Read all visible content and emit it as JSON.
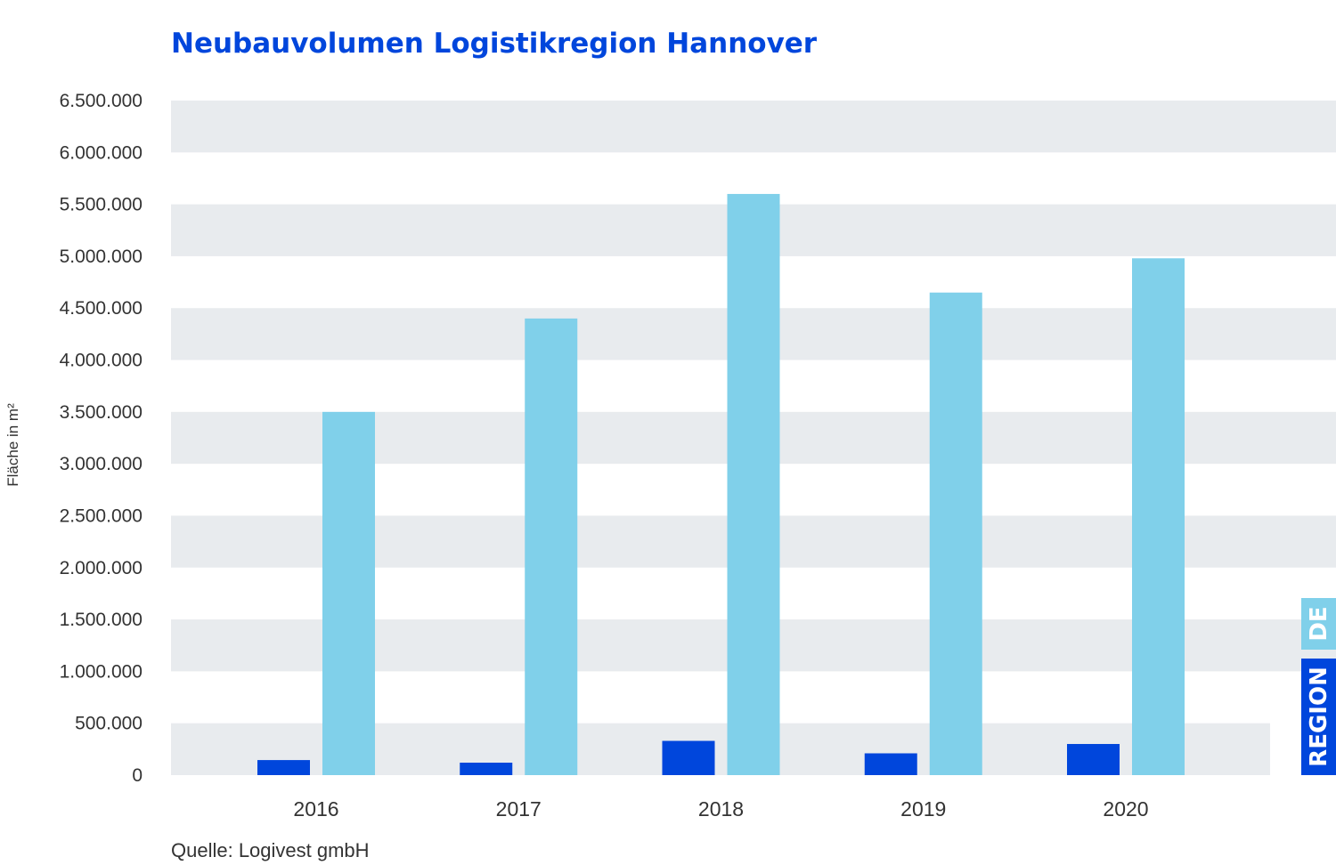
{
  "colors": {
    "region": "#0046dc",
    "de": "#80d0ea",
    "band": "#e8ebee",
    "text": "#333333"
  },
  "chart_data": {
    "type": "bar",
    "title": "Neubauvolumen Logistikregion Hannover",
    "ylabel": "Fläche in m²",
    "xlabel": "",
    "categories": [
      "2016",
      "2017",
      "2018",
      "2019",
      "2020"
    ],
    "series": [
      {
        "name": "REGION",
        "values": [
          145000,
          120000,
          330000,
          210000,
          300000
        ]
      },
      {
        "name": "DE",
        "values": [
          3500000,
          4400000,
          5600000,
          4650000,
          4980000
        ]
      }
    ],
    "ylim": [
      0,
      6500000
    ],
    "yticks": [
      0,
      500000,
      1000000,
      1500000,
      2000000,
      2500000,
      3000000,
      3500000,
      4000000,
      4500000,
      5000000,
      5500000,
      6000000,
      6500000
    ],
    "ytick_labels": [
      "0",
      "500.000",
      "1.000.000",
      "1.500.000",
      "2.000.000",
      "2.500.000",
      "3.000.000",
      "3.500.000",
      "4.000.000",
      "4.500.000",
      "5.000.000",
      "5.500.000",
      "6.000.000",
      "6.500.000"
    ],
    "grid": "alternating horizontal bands",
    "legend_position": "bottom-right, vertical"
  },
  "source": "Quelle: Logivest gmbH"
}
